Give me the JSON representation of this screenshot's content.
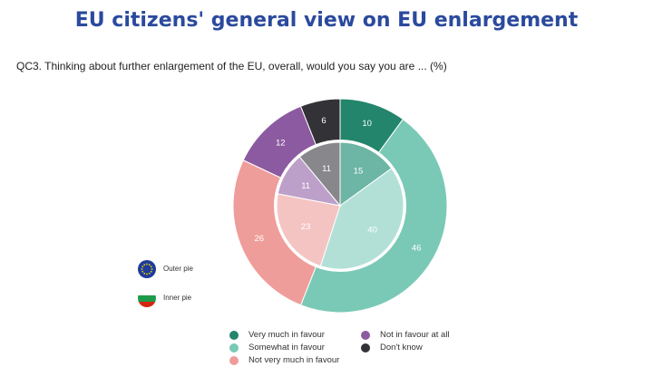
{
  "title": "EU citizens' general view on EU enlargement",
  "question": "QC3. Thinking about further enlargement of the EU, overall, would you say you are ... (%)",
  "key": {
    "outer_label": "Outer pie",
    "inner_label": "Inner pie",
    "outer_icon": "eu-flag-icon",
    "inner_icon": "bulgaria-flag-icon"
  },
  "legend": [
    {
      "label": "Very much in favour",
      "color": "#23856b"
    },
    {
      "label": "Somewhat in favour",
      "color": "#7ac9b6"
    },
    {
      "label": "Not very much in favour",
      "color": "#ef9d9a"
    },
    {
      "label": "Not in favour at all",
      "color": "#8c5aa0"
    },
    {
      "label": "Don't know",
      "color": "#333236"
    }
  ],
  "chart_data": {
    "type": "pie",
    "categories": [
      "Very much in favour",
      "Somewhat in favour",
      "Not very much in favour",
      "Not in favour at all",
      "Don't know"
    ],
    "series": [
      {
        "name": "Outer pie",
        "values": [
          10,
          46,
          26,
          12,
          6
        ]
      },
      {
        "name": "Inner pie",
        "values": [
          15,
          40,
          23,
          11,
          11
        ]
      }
    ],
    "colors_outer": [
      "#23856b",
      "#7ac9b6",
      "#ef9d9a",
      "#8c5aa0",
      "#333236"
    ],
    "colors_inner": [
      "#6db5a5",
      "#b2e0d6",
      "#f4c4c3",
      "#bca0c9",
      "#88878c"
    ],
    "label_colors": [
      "#ffffff",
      "#ffffff",
      "#ffffff",
      "#ffffff",
      "#ffffff"
    ]
  }
}
